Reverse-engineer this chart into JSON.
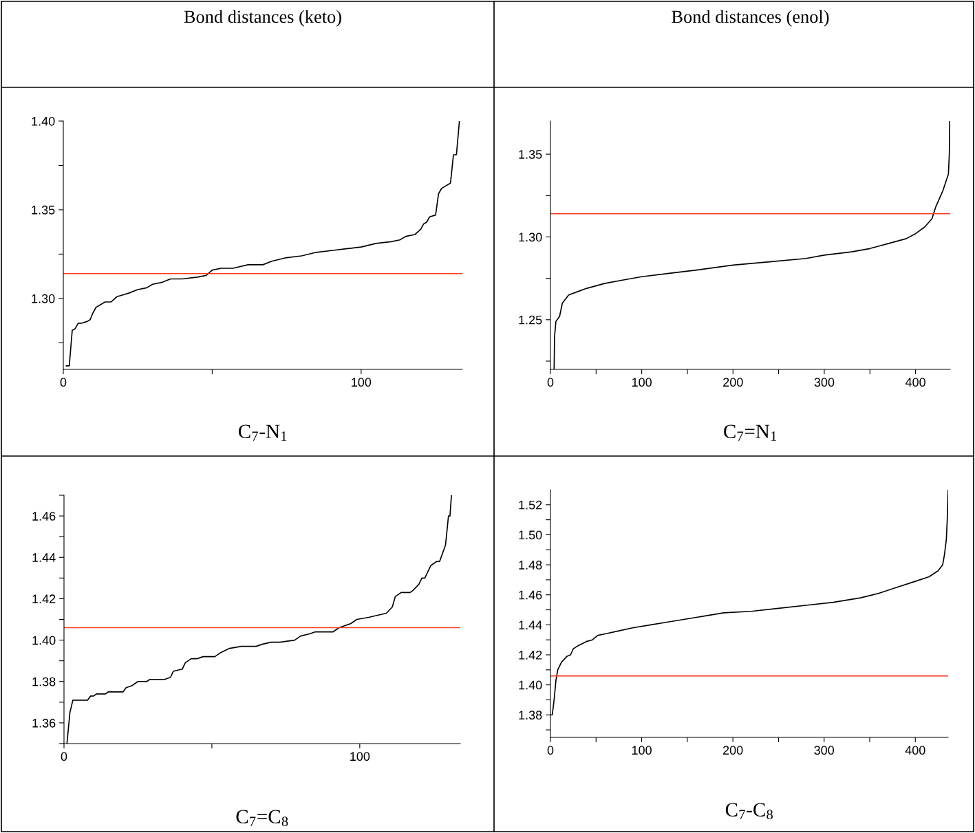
{
  "chart_data": [
    {
      "type": "line",
      "title": "Bond distances (keto)",
      "xlabel": "C$_{7}$-N$_{1}$",
      "xlim": [
        0,
        134
      ],
      "xticks": [
        0,
        {
          "value": 50,
          "label": null
        },
        100
      ],
      "ylim": [
        1.26,
        1.4
      ],
      "yticks": [
        {
          "value": 1.275,
          "label": null
        },
        {
          "value": 1.3,
          "label": "1.30"
        },
        {
          "value": 1.325,
          "label": null
        },
        1.35,
        {
          "value": 1.375,
          "label": null
        },
        {
          "value": 1.4,
          "label": "1.40"
        }
      ],
      "grid": false,
      "legend": false,
      "ref_lines": [
        {
          "axis": "y",
          "value": 1.314,
          "color": "#ff3b1f"
        }
      ],
      "series": [
        {
          "color": "#000000",
          "x": [
            1,
            2,
            3,
            4,
            5,
            6,
            8,
            9,
            10,
            11,
            12,
            14,
            16,
            18,
            20,
            22,
            25,
            28,
            30,
            33,
            36,
            40,
            45,
            48,
            50,
            53,
            57,
            62,
            67,
            70,
            75,
            80,
            85,
            90,
            95,
            100,
            105,
            110,
            113,
            115,
            118,
            120,
            121,
            122,
            123,
            125,
            126,
            127,
            128,
            129,
            130,
            131,
            132,
            133
          ],
          "values": [
            1.262,
            1.262,
            1.282,
            1.283,
            1.286,
            1.286,
            1.287,
            1.288,
            1.292,
            1.295,
            1.296,
            1.298,
            1.298,
            1.301,
            1.302,
            1.303,
            1.305,
            1.306,
            1.308,
            1.309,
            1.311,
            1.311,
            1.312,
            1.313,
            1.316,
            1.317,
            1.317,
            1.319,
            1.319,
            1.321,
            1.323,
            1.324,
            1.326,
            1.327,
            1.328,
            1.329,
            1.331,
            1.332,
            1.333,
            1.335,
            1.336,
            1.339,
            1.342,
            1.343,
            1.346,
            1.347,
            1.359,
            1.362,
            1.363,
            1.364,
            1.365,
            1.381,
            1.381,
            1.4
          ]
        }
      ]
    },
    {
      "type": "line",
      "title": "Bond distances (enol)",
      "xlabel": "C$_{7}$=N$_{1}$",
      "xlim": [
        0,
        438
      ],
      "xticks": [
        0,
        {
          "value": 50,
          "label": null
        },
        100,
        {
          "value": 150,
          "label": null
        },
        200,
        {
          "value": 250,
          "label": null
        },
        300,
        {
          "value": 350,
          "label": null
        },
        400
      ],
      "ylim": [
        1.22,
        1.37
      ],
      "yticks": [
        {
          "value": 1.225,
          "label": null
        },
        1.25,
        {
          "value": 1.275,
          "label": null
        },
        {
          "value": 1.3,
          "label": "1.30"
        },
        {
          "value": 1.325,
          "label": null
        },
        1.35
      ],
      "grid": false,
      "legend": false,
      "ref_lines": [
        {
          "axis": "y",
          "value": 1.314,
          "color": "#ff3b1f"
        }
      ],
      "series": [
        {
          "color": "#000000",
          "x": [
            4,
            4.5,
            6,
            10,
            13,
            20,
            30,
            40,
            60,
            80,
            100,
            130,
            160,
            200,
            240,
            280,
            300,
            330,
            350,
            370,
            390,
            400,
            410,
            418,
            422,
            430,
            436,
            437,
            437.5
          ],
          "values": [
            1.22,
            1.24,
            1.249,
            1.252,
            1.26,
            1.265,
            1.267,
            1.269,
            1.272,
            1.274,
            1.276,
            1.278,
            1.28,
            1.283,
            1.285,
            1.287,
            1.289,
            1.291,
            1.293,
            1.296,
            1.299,
            1.302,
            1.306,
            1.311,
            1.318,
            1.328,
            1.338,
            1.35,
            1.37
          ]
        }
      ]
    },
    {
      "type": "line",
      "xlabel": "C$_{7}$=C$_{8}$",
      "xlim": [
        0,
        134
      ],
      "xticks": [
        0,
        {
          "value": 50,
          "label": null
        },
        100
      ],
      "ylim": [
        1.35,
        1.47
      ],
      "yticks": [
        {
          "value": 1.35,
          "label": null
        },
        1.36,
        {
          "value": 1.37,
          "label": null
        },
        1.38,
        {
          "value": 1.39,
          "label": null
        },
        {
          "value": 1.4,
          "label": "1.40"
        },
        {
          "value": 1.41,
          "label": null
        },
        1.42,
        {
          "value": 1.43,
          "label": null
        },
        1.44,
        {
          "value": 1.45,
          "label": null
        },
        1.46,
        {
          "value": 1.47,
          "label": null
        }
      ],
      "grid": false,
      "legend": false,
      "ref_lines": [
        {
          "axis": "y",
          "value": 1.406,
          "color": "#ff3b1f"
        }
      ],
      "series": [
        {
          "color": "#000000",
          "x": [
            1,
            2,
            3,
            8,
            9,
            10,
            11,
            14,
            15,
            20,
            21,
            23,
            25,
            28,
            29,
            34,
            36,
            37,
            40,
            41,
            43,
            45,
            47,
            51,
            53,
            56,
            60,
            65,
            67,
            70,
            73,
            78,
            80,
            83,
            85,
            91,
            93,
            95,
            97,
            99,
            103,
            106,
            109,
            111,
            112,
            114,
            117,
            118,
            120,
            121,
            122,
            124,
            126,
            127,
            128,
            129,
            130,
            130.5,
            131
          ],
          "values": [
            1.35,
            1.365,
            1.371,
            1.371,
            1.373,
            1.373,
            1.374,
            1.374,
            1.375,
            1.375,
            1.377,
            1.378,
            1.38,
            1.38,
            1.381,
            1.381,
            1.382,
            1.385,
            1.386,
            1.389,
            1.391,
            1.391,
            1.392,
            1.392,
            1.394,
            1.396,
            1.397,
            1.397,
            1.398,
            1.399,
            1.399,
            1.4,
            1.402,
            1.403,
            1.404,
            1.404,
            1.406,
            1.407,
            1.408,
            1.41,
            1.411,
            1.412,
            1.413,
            1.416,
            1.421,
            1.423,
            1.423,
            1.424,
            1.427,
            1.43,
            1.43,
            1.436,
            1.438,
            1.438,
            1.442,
            1.446,
            1.46,
            1.46,
            1.47
          ]
        }
      ]
    },
    {
      "type": "line",
      "xlabel": "C$_{7}$-C$_{8}$",
      "xlim": [
        0,
        436
      ],
      "xticks": [
        0,
        {
          "value": 50,
          "label": null
        },
        100,
        {
          "value": 150,
          "label": null
        },
        200,
        {
          "value": 250,
          "label": null
        },
        300,
        {
          "value": 350,
          "label": null
        },
        400
      ],
      "ylim": [
        1.365,
        1.53
      ],
      "yticks": [
        {
          "value": 1.37,
          "label": null
        },
        1.38,
        {
          "value": 1.39,
          "label": null
        },
        {
          "value": 1.4,
          "label": "1.40"
        },
        {
          "value": 1.41,
          "label": null
        },
        1.42,
        {
          "value": 1.43,
          "label": null
        },
        1.44,
        {
          "value": 1.45,
          "label": null
        },
        1.46,
        {
          "value": 1.47,
          "label": null
        },
        1.48,
        {
          "value": 1.49,
          "label": null
        },
        {
          "value": 1.5,
          "label": "1.50"
        },
        {
          "value": 1.51,
          "label": null
        },
        1.52
      ],
      "grid": false,
      "legend": false,
      "ref_lines": [
        {
          "axis": "y",
          "value": 1.406,
          "color": "#ff3b1f"
        }
      ],
      "series": [
        {
          "color": "#000000",
          "x": [
            0,
            2,
            4,
            6,
            8,
            12,
            18,
            22,
            25,
            30,
            40,
            46,
            52,
            60,
            75,
            90,
            110,
            130,
            160,
            190,
            220,
            250,
            280,
            310,
            340,
            360,
            380,
            400,
            415,
            425,
            430,
            432,
            434,
            435,
            436
          ],
          "values": [
            1.38,
            1.38,
            1.39,
            1.403,
            1.41,
            1.415,
            1.419,
            1.42,
            1.424,
            1.426,
            1.429,
            1.43,
            1.433,
            1.434,
            1.436,
            1.438,
            1.44,
            1.442,
            1.445,
            1.448,
            1.449,
            1.451,
            1.453,
            1.455,
            1.458,
            1.461,
            1.465,
            1.469,
            1.472,
            1.476,
            1.48,
            1.487,
            1.497,
            1.51,
            1.53
          ]
        }
      ]
    }
  ]
}
